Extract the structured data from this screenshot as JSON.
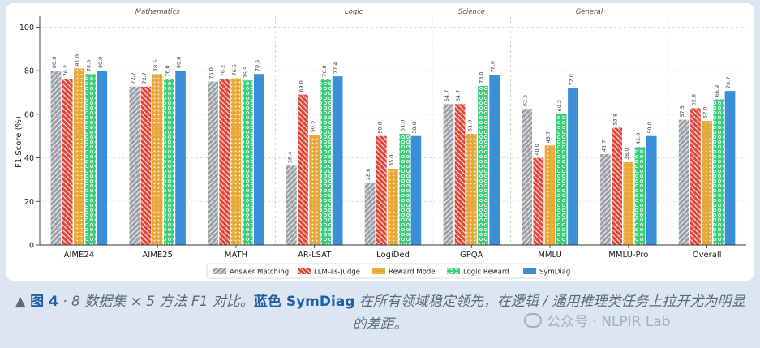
{
  "chart_data": {
    "type": "bar",
    "categories": [
      "AIME24",
      "AIME25",
      "MATH",
      "AR-LSAT",
      "LogiDed",
      "GPQA",
      "MMLU",
      "MMLU-Pro",
      "Overall"
    ],
    "groups": [
      {
        "label": "Mathematics",
        "categories": [
          "AIME24",
          "AIME25",
          "MATH"
        ]
      },
      {
        "label": "Logic",
        "categories": [
          "AR-LSAT",
          "LogiDed"
        ]
      },
      {
        "label": "Science",
        "categories": [
          "GPQA"
        ]
      },
      {
        "label": "General",
        "categories": [
          "MMLU",
          "MMLU-Pro"
        ]
      }
    ],
    "series": [
      {
        "name": "Answer Matching",
        "color": "#9aa0a6",
        "pattern": "hatch-diag",
        "values": [
          80.0,
          72.7,
          75.0,
          36.4,
          28.6,
          64.7,
          62.5,
          41.7,
          57.5
        ]
      },
      {
        "name": "LLM-as-Judge",
        "color": "#e0473b",
        "pattern": "hatch-back",
        "values": [
          76.2,
          72.7,
          76.2,
          69.0,
          50.0,
          64.7,
          40.0,
          53.8,
          62.8
        ]
      },
      {
        "name": "Reward Model",
        "color": "#e8a838",
        "pattern": "dots",
        "values": [
          81.0,
          78.5,
          76.5,
          50.5,
          35.0,
          51.0,
          45.7,
          38.0,
          57.0
        ]
      },
      {
        "name": "Logic Reward",
        "color": "#3ccf7a",
        "pattern": "circles",
        "values": [
          78.5,
          76.0,
          75.5,
          76.0,
          51.0,
          73.0,
          60.2,
          45.0,
          66.9
        ]
      },
      {
        "name": "SymDiag",
        "color": "#3b8fd9",
        "pattern": "solid",
        "values": [
          80.0,
          80.0,
          78.5,
          77.4,
          50.0,
          78.0,
          72.0,
          50.0,
          70.7
        ]
      }
    ],
    "value_labels": [
      [
        "80.0",
        "72.7",
        "75.0",
        "36.4",
        "28.6",
        "64.7",
        "62.5",
        "41.7",
        "57.5"
      ],
      [
        "76.2",
        "72.7",
        "76.2",
        "69.0",
        "50.0",
        "64.7",
        "40.0",
        "53.8",
        "62.8"
      ],
      [
        "81.0",
        "78.5",
        "76.5",
        "50.5",
        "35.0",
        "51.0",
        "45.7",
        "38.0",
        "57.0"
      ],
      [
        "78.5",
        "76.0",
        "75.5",
        "76.0",
        "51.0",
        "73.0",
        "60.2",
        "45.0",
        "66.9"
      ],
      [
        "80.0",
        "80.0",
        "78.5",
        "77.4",
        "50.0",
        "78.0",
        "72.0",
        "50.0",
        "70.7"
      ]
    ],
    "ylabel": "F1 Score (%)",
    "ylim": [
      0,
      105
    ],
    "yticks": [
      0,
      20,
      40,
      60,
      80,
      100
    ],
    "grid": true,
    "legend_position": "bottom-center"
  },
  "caption": {
    "marker": "▲",
    "fig_label": "图 4",
    "text_a": " · 8 数据集 × 5 方法 F1 对比。",
    "highlight": "蓝色 SymDiag",
    "text_b": " 在所有领域稳定领先，在逻辑 / 通用推理类任务上拉开尤为明显的差距。"
  },
  "watermark": "公众号 · NLPIR Lab"
}
